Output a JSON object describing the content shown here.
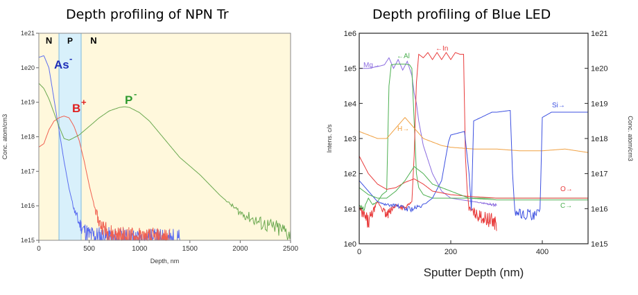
{
  "chart_data": [
    {
      "type": "line",
      "title": "Depth profiling of NPN Tr",
      "xlabel": "Depth, nm",
      "ylabel": "Conc. atom/cm3",
      "xlim": [
        0,
        2500
      ],
      "ylim_exp": [
        15,
        21
      ],
      "yscale": "log",
      "x_ticks": [
        "0",
        "500",
        "1000",
        "1500",
        "2000",
        "2500"
      ],
      "y_ticks": [
        "1e15",
        "1e16",
        "1e17",
        "1e18",
        "1e19",
        "1e20",
        "1e21"
      ],
      "background": "#fff8dc",
      "regions": [
        {
          "label": "N",
          "x0": 0,
          "x1": 200,
          "color": "#fff8dc"
        },
        {
          "label": "P",
          "x0": 200,
          "x1": 420,
          "color": "#d8f0fb"
        },
        {
          "label": "N",
          "x0": 420,
          "x1": 2500,
          "color": "#fff8dc"
        }
      ],
      "annotations": [
        {
          "text": "As",
          "sup": "-",
          "color": "#1f2fb8"
        },
        {
          "text": "B",
          "sup": "+",
          "color": "#e02020"
        },
        {
          "text": "P",
          "sup": "-",
          "color": "#2e9a2e"
        }
      ],
      "series": [
        {
          "name": "As",
          "color": "#5a6cf0",
          "x": [
            0,
            50,
            100,
            150,
            200,
            250,
            300,
            350,
            400,
            450,
            500,
            600,
            700,
            800,
            1000,
            1400
          ],
          "log_y": [
            20.3,
            20.35,
            20.0,
            19.1,
            18.2,
            17.3,
            16.5,
            15.9,
            15.5,
            15.3,
            15.15,
            15.1,
            15.05,
            15.02,
            15.0,
            15.0
          ]
        },
        {
          "name": "B",
          "color": "#f06050",
          "x": [
            0,
            50,
            100,
            150,
            200,
            250,
            300,
            350,
            400,
            450,
            500,
            550,
            600,
            700,
            800,
            1000,
            1300
          ],
          "log_y": [
            17.7,
            17.8,
            18.2,
            18.45,
            18.55,
            18.6,
            18.55,
            18.3,
            17.9,
            17.3,
            16.6,
            16.0,
            15.5,
            15.2,
            15.1,
            15.05,
            15.0
          ]
        },
        {
          "name": "P",
          "color": "#6aa84f",
          "x": [
            0,
            50,
            100,
            150,
            200,
            250,
            300,
            400,
            500,
            600,
            700,
            800,
            850,
            900,
            1000,
            1100,
            1200,
            1400,
            1600,
            1800,
            2000,
            2200,
            2400,
            2500
          ],
          "log_y": [
            19.55,
            19.4,
            19.1,
            18.7,
            18.3,
            17.95,
            17.9,
            18.05,
            18.3,
            18.55,
            18.75,
            18.85,
            18.87,
            18.85,
            18.7,
            18.45,
            18.1,
            17.4,
            16.9,
            16.3,
            15.8,
            15.5,
            15.3,
            15.2
          ]
        }
      ]
    },
    {
      "type": "line",
      "title": "Depth profiling of Blue LED",
      "xlabel": "Sputter Depth (nm)",
      "ylabel": "Intens. c/s",
      "y2label": "Conc. atom/cm3",
      "xlim": [
        0,
        500
      ],
      "ylim_exp": [
        0,
        6
      ],
      "y2lim_exp": [
        15,
        21
      ],
      "yscale": "log",
      "x_ticks": [
        "0",
        "200",
        "400"
      ],
      "y_ticks": [
        "1e0",
        "1e1",
        "1e2",
        "1e3",
        "1e4",
        "1e5",
        "1e6"
      ],
      "y2_ticks": [
        "1e15",
        "1e16",
        "1e17",
        "1e18",
        "1e19",
        "1e20",
        "1e21"
      ],
      "series": [
        {
          "name": "Mg",
          "label": "Mg→",
          "color": "#8a6adf",
          "x": [
            0,
            20,
            40,
            55,
            65,
            75,
            85,
            95,
            105,
            115,
            120,
            125,
            130,
            140,
            160,
            180,
            200,
            250,
            300
          ],
          "log_y": [
            5.0,
            5.0,
            5.05,
            5.1,
            5.3,
            5.0,
            5.25,
            4.95,
            5.2,
            4.8,
            4.3,
            4.0,
            3.5,
            2.8,
            2.0,
            1.5,
            1.3,
            1.2,
            1.1
          ]
        },
        {
          "name": "Al",
          "label": "←Al",
          "color": "#4caf50",
          "x": [
            0,
            10,
            20,
            30,
            40,
            50,
            60,
            65,
            70,
            80,
            90,
            100,
            110,
            115,
            120,
            125,
            130,
            140,
            150,
            160,
            180,
            200,
            300,
            500
          ],
          "log_y": [
            1.1,
            1.0,
            1.3,
            1.1,
            1.2,
            1.4,
            1.5,
            4.5,
            5.1,
            5.12,
            5.12,
            5.12,
            5.1,
            5.0,
            3.5,
            2.0,
            1.6,
            1.4,
            1.35,
            1.3,
            1.3,
            1.3,
            1.3,
            1.3
          ]
        },
        {
          "name": "In",
          "label": "←In",
          "color": "#e83a3a",
          "x": [
            0,
            20,
            40,
            60,
            80,
            100,
            115,
            120,
            125,
            130,
            140,
            150,
            160,
            170,
            180,
            190,
            200,
            210,
            220,
            228,
            232,
            236,
            240,
            260,
            300
          ],
          "log_y": [
            1.0,
            0.6,
            1.2,
            0.8,
            1.1,
            1.0,
            1.2,
            2.5,
            4.6,
            5.4,
            5.3,
            5.45,
            5.25,
            5.45,
            5.25,
            5.45,
            5.25,
            5.45,
            5.4,
            5.4,
            2.5,
            1.5,
            1.0,
            0.8,
            0.6
          ]
        },
        {
          "name": "H",
          "label": "H→",
          "color": "#f0a040",
          "x": [
            0,
            20,
            40,
            60,
            80,
            100,
            120,
            140,
            160,
            180,
            200,
            250,
            300,
            350,
            400,
            450,
            500
          ],
          "log_y": [
            3.2,
            3.1,
            3.0,
            3.0,
            3.3,
            3.6,
            3.3,
            3.0,
            2.9,
            2.8,
            2.75,
            2.7,
            2.7,
            2.65,
            2.65,
            2.7,
            2.6
          ]
        },
        {
          "name": "Si",
          "label": "Si→",
          "color": "#3b4fe0",
          "x": [
            0,
            20,
            40,
            60,
            80,
            100,
            120,
            140,
            160,
            180,
            195,
            200,
            230,
            240,
            245,
            250,
            290,
            300,
            330,
            335,
            340,
            350,
            360,
            370,
            380,
            390,
            395,
            400,
            420,
            430,
            500
          ],
          "log_y": [
            1.8,
            1.5,
            1.2,
            1.1,
            1.1,
            1.0,
            1.0,
            1.1,
            1.3,
            1.8,
            2.9,
            3.1,
            3.2,
            2.0,
            1.0,
            3.5,
            3.75,
            3.75,
            3.8,
            2.0,
            0.9,
            0.9,
            0.8,
            0.9,
            0.7,
            0.9,
            0.9,
            3.6,
            3.75,
            3.75,
            3.75
          ]
        },
        {
          "name": "O",
          "label": "O→",
          "color": "#e83a3a",
          "x": [
            0,
            20,
            40,
            60,
            80,
            100,
            120,
            140,
            160,
            200,
            240,
            300,
            400,
            500
          ],
          "log_y": [
            2.5,
            2.0,
            1.7,
            1.55,
            1.6,
            1.75,
            1.85,
            1.7,
            1.5,
            1.4,
            1.35,
            1.3,
            1.3,
            1.3
          ]
        },
        {
          "name": "C",
          "label": "C→",
          "color": "#4caf50",
          "x": [
            0,
            20,
            40,
            60,
            80,
            100,
            120,
            140,
            160,
            200,
            240,
            300,
            400,
            500
          ],
          "log_y": [
            1.6,
            1.4,
            1.3,
            1.3,
            1.5,
            1.8,
            2.2,
            2.0,
            1.7,
            1.5,
            1.3,
            1.25,
            1.25,
            1.25
          ]
        }
      ]
    }
  ]
}
